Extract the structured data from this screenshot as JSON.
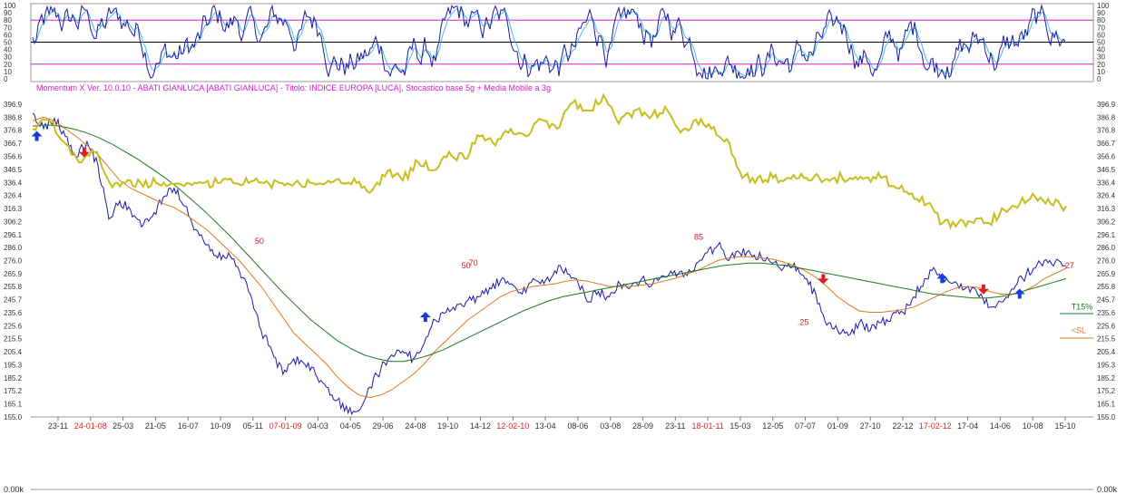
{
  "chart_data": [
    {
      "type": "line",
      "panel": "oscillator",
      "title": "",
      "y_ticks": [
        100,
        90,
        80,
        70,
        60,
        50,
        40,
        30,
        20,
        10,
        0
      ],
      "ylim": [
        0,
        100
      ],
      "overbought_level": 80,
      "oversold_level": 20,
      "mid_level": 50,
      "note": ""
    },
    {
      "type": "line",
      "panel": "price",
      "header_text": "Momentum X   Ver. 10.0.10  -  ABATI GIANLUCA  [ABATI GIANLUCA] - Titolo: INDICE EUROPA  [LUCA],    Stocastico base 5g + Media Mobile a 3g",
      "y_ticks": [
        396.9,
        386.8,
        376.8,
        366.7,
        356.6,
        346.5,
        336.4,
        326.4,
        316.3,
        306.2,
        296.1,
        286.0,
        276.0,
        265.9,
        255.8,
        245.7,
        235.6,
        225.6,
        215.5,
        205.4,
        195.3,
        185.2,
        175.2,
        165.1,
        155.0
      ],
      "ylim": [
        155.0,
        396.9
      ],
      "x_ticks": [
        {
          "label": "23-11",
          "red": false
        },
        {
          "label": "24-01-08",
          "red": true
        },
        {
          "label": "25-03",
          "red": false
        },
        {
          "label": "21-05",
          "red": false
        },
        {
          "label": "16-07",
          "red": false
        },
        {
          "label": "10-09",
          "red": false
        },
        {
          "label": "05-11",
          "red": false
        },
        {
          "label": "07-01-09",
          "red": true
        },
        {
          "label": "04-03",
          "red": false
        },
        {
          "label": "04-05",
          "red": false
        },
        {
          "label": "29-06",
          "red": false
        },
        {
          "label": "24-08",
          "red": false
        },
        {
          "label": "19-10",
          "red": false
        },
        {
          "label": "14-12",
          "red": false
        },
        {
          "label": "12-02-10",
          "red": true
        },
        {
          "label": "13-04",
          "red": false
        },
        {
          "label": "08-06",
          "red": false
        },
        {
          "label": "03-08",
          "red": false
        },
        {
          "label": "28-09",
          "red": false
        },
        {
          "label": "23-11",
          "red": false
        },
        {
          "label": "18-01-11",
          "red": true
        },
        {
          "label": "15-03",
          "red": false
        },
        {
          "label": "12-05",
          "red": false
        },
        {
          "label": "07-07",
          "red": false
        },
        {
          "label": "01-09",
          "red": false
        },
        {
          "label": "27-10",
          "red": false
        },
        {
          "label": "22-12",
          "red": false
        },
        {
          "label": "17-02-12",
          "red": true
        },
        {
          "label": "17-04",
          "red": false
        },
        {
          "label": "14-06",
          "red": false
        },
        {
          "label": "10-08",
          "red": false
        },
        {
          "label": "15-10",
          "red": false
        }
      ],
      "series": [
        {
          "color": "#1a1aa8",
          "role": "price",
          "values": [
            390,
            378,
            386,
            372,
            356,
            368,
            350,
            308,
            322,
            315,
            302,
            310,
            325,
            332,
            318,
            300,
            288,
            278,
            282,
            268,
            250,
            222,
            206,
            188,
            200,
            196,
            188,
            178,
            168,
            158,
            160,
            178,
            192,
            203,
            206,
            200,
            212,
            230,
            236,
            242,
            245,
            248,
            255,
            260,
            258,
            250,
            262,
            258,
            268,
            270,
            262,
            244,
            252,
            248,
            258,
            256,
            262,
            258,
            264,
            268,
            266,
            274,
            282,
            288,
            276,
            282,
            281,
            278,
            274,
            270,
            274,
            262,
            250,
            226,
            222,
            218,
            228,
            222,
            228,
            234,
            236,
            248,
            262,
            268,
            262,
            258,
            256,
            248,
            240,
            244,
            254,
            262,
            270,
            276,
            275,
            272
          ]
        },
        {
          "color": "#e07820",
          "role": "moving-average-short",
          "values": [
            384,
            387,
            384,
            378,
            372,
            365,
            358,
            348,
            338,
            332,
            328,
            324,
            320,
            317,
            312,
            306,
            300,
            292,
            284,
            276,
            266,
            256,
            244,
            232,
            220,
            212,
            204,
            196,
            186,
            178,
            172,
            170,
            172,
            176,
            182,
            188,
            196,
            206,
            214,
            222,
            230,
            236,
            242,
            248,
            252,
            254,
            256,
            257,
            258,
            260,
            261,
            260,
            258,
            256,
            256,
            256,
            257,
            258,
            260,
            262,
            265,
            268,
            272,
            276,
            278,
            279,
            279,
            278,
            277,
            275,
            272,
            268,
            263,
            256,
            248,
            242,
            237,
            236,
            236,
            237,
            238,
            240,
            244,
            248,
            252,
            255,
            256,
            255,
            252,
            250,
            250,
            252,
            256,
            262,
            266,
            270
          ]
        },
        {
          "color": "#1e7a1e",
          "role": "moving-average-long",
          "values": [
            380,
            381,
            380,
            378,
            375,
            371,
            366,
            360,
            354,
            347,
            340,
            332,
            323,
            314,
            304,
            294,
            283,
            272,
            261,
            250,
            240,
            230,
            222,
            214,
            208,
            203,
            200,
            198,
            198,
            200,
            203,
            207,
            212,
            217,
            222,
            227,
            232,
            237,
            241,
            245,
            248,
            250,
            252,
            254,
            256,
            258,
            260,
            262,
            264,
            266,
            268,
            270,
            272,
            273,
            274,
            274,
            273,
            272,
            270,
            268,
            266,
            264,
            262,
            260,
            258,
            256,
            254,
            252,
            250,
            249,
            248,
            247,
            247,
            248,
            250,
            253,
            256,
            259,
            262
          ]
        },
        {
          "color": "#c6be1e",
          "role": "indicator-overlay",
          "values": [
            378,
            385,
            368,
            352,
            360,
            336,
            336,
            336,
            336,
            336,
            336,
            336,
            336,
            336,
            336,
            336,
            336,
            336,
            336,
            336,
            336,
            336,
            330,
            345,
            338,
            352,
            346,
            360,
            355,
            372,
            365,
            378,
            372,
            385,
            378,
            398,
            392,
            404,
            382,
            392,
            386,
            395,
            375,
            385,
            378,
            370,
            340,
            340,
            340,
            340,
            340,
            340,
            340,
            340,
            340,
            340,
            332,
            328,
            320,
            305,
            305,
            305,
            305,
            315,
            320,
            325,
            320,
            318
          ]
        }
      ],
      "annotations": [
        {
          "text": "50",
          "color": "#d02020"
        },
        {
          "text": "50",
          "color": "#d02020"
        },
        {
          "text": "70",
          "color": "#d02020"
        },
        {
          "text": "85",
          "color": "#d02020"
        },
        {
          "text": ".25",
          "color": "#d02020"
        },
        {
          "text": "27",
          "color": "#d02020"
        },
        {
          "text": "T15%",
          "color": "#1e7a1e"
        },
        {
          "text": "<SL",
          "color": "#e07820"
        }
      ],
      "signals": [
        {
          "type": "buy",
          "color": "#1a3ad8"
        },
        {
          "type": "sell",
          "color": "#e02020"
        },
        {
          "type": "buy",
          "color": "#1a3ad8"
        },
        {
          "type": "sell",
          "color": "#e02020"
        },
        {
          "type": "buy",
          "color": "#1a3ad8"
        },
        {
          "type": "sell",
          "color": "#e02020"
        },
        {
          "type": "buy",
          "color": "#1a3ad8"
        }
      ]
    },
    {
      "type": "bar",
      "panel": "volume",
      "y_label_left": "0.00k",
      "y_label_right": "0.00k"
    }
  ]
}
